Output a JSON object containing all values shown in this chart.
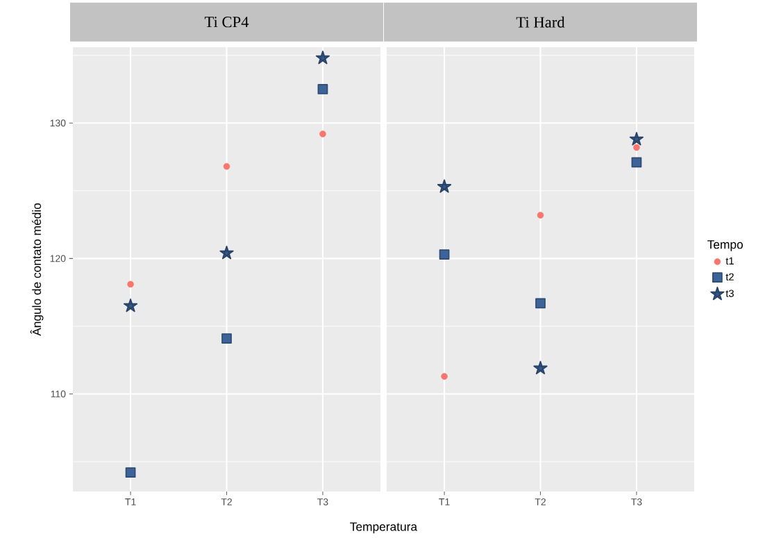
{
  "chart_data": [
    {
      "type": "scatter",
      "title": "Ti CP4",
      "xlabel": "Temperatura",
      "ylabel": "Ângulo de contato médio",
      "categories": [
        "T1",
        "T2",
        "T3"
      ],
      "series": [
        {
          "color": "#f8766d",
          "marker": "circle",
          "values": [
            118.1,
            126.8,
            129.2
          ]
        },
        {
          "color": "#3d6499",
          "marker": "square",
          "values": [
            104.2,
            114.1,
            132.5
          ]
        },
        {
          "color": "#35588a",
          "marker": "star",
          "values": [
            116.5,
            120.4,
            134.8
          ]
        }
      ],
      "ylim": [
        102.8,
        135.6
      ],
      "yticks": [
        {
          "value": 105,
          "label": null
        },
        110,
        {
          "value": 115,
          "label": null
        },
        120,
        {
          "value": 125,
          "label": null
        },
        130,
        {
          "value": 135,
          "label": null
        }
      ],
      "grid": true,
      "legend": false
    },
    {
      "type": "scatter",
      "title": "Ti Hard",
      "legend_title": "Tempo",
      "categories": [
        "T1",
        "T2",
        "T3"
      ],
      "series": [
        {
          "name": "t1",
          "color": "#f8766d",
          "marker": "circle",
          "values": [
            111.3,
            123.2,
            128.2
          ]
        },
        {
          "name": "t2",
          "color": "#3d6499",
          "marker": "square",
          "values": [
            120.3,
            116.7,
            127.1
          ]
        },
        {
          "name": "t3",
          "color": "#35588a",
          "marker": "star",
          "values": [
            125.3,
            111.9,
            128.8
          ]
        }
      ],
      "ylim": [
        102.8,
        135.6
      ],
      "yticks": [
        {
          "value": 105,
          "label": null
        },
        110,
        {
          "value": 115,
          "label": null
        },
        120,
        {
          "value": 125,
          "label": null
        },
        130,
        {
          "value": 135,
          "label": null
        }
      ],
      "grid": true,
      "legend": "right",
      "tick_labels": "x"
    }
  ]
}
